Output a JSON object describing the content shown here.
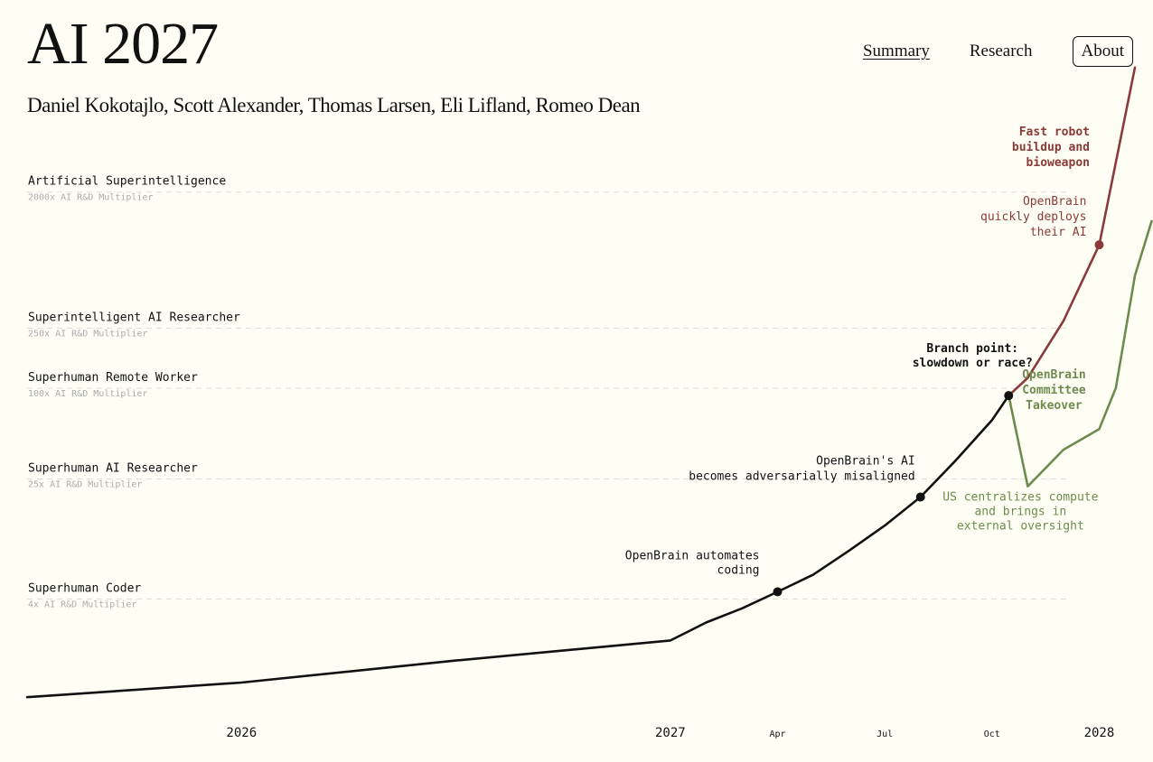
{
  "header": {
    "title": "AI 2027",
    "authors": "Daniel Kokotajlo, Scott Alexander, Thomas Larsen, Eli Lifland, Romeo Dean"
  },
  "nav": {
    "summary": "Summary",
    "research": "Research",
    "about": "About"
  },
  "colors": {
    "background": "#fffef5",
    "main_line": "#111111",
    "race": "#8b3a3a",
    "slowdown": "#6e8b4e",
    "milestone_sub": "#aaaaaa",
    "gridline": "#dddddd"
  },
  "chart_data": {
    "type": "line",
    "x_axis_type": "date",
    "xlim": [
      "2025-07",
      "2028-02"
    ],
    "ylog": true,
    "x_ticks": [
      {
        "label": "2026",
        "date": "2026-01",
        "major": true
      },
      {
        "label": "2027",
        "date": "2027-01",
        "major": true
      },
      {
        "label": "Apr",
        "date": "2027-04",
        "major": false
      },
      {
        "label": "Jul",
        "date": "2027-07",
        "major": false
      },
      {
        "label": "Oct",
        "date": "2027-10",
        "major": false
      },
      {
        "label": "2028",
        "date": "2028-01",
        "major": true
      }
    ],
    "milestones": [
      {
        "label": "Artificial Superintelligence",
        "sublabel": "2000x AI R&D Multiplier",
        "value": 2000
      },
      {
        "label": "Superintelligent AI Researcher",
        "sublabel": "250x AI R&D Multiplier",
        "value": 250
      },
      {
        "label": "Superhuman Remote Worker",
        "sublabel": "100x AI R&D Multiplier",
        "value": 100
      },
      {
        "label": "Superhuman AI Researcher",
        "sublabel": "25x AI R&D Multiplier",
        "value": 25
      },
      {
        "label": "Superhuman Coder",
        "sublabel": "4x AI R&D Multiplier",
        "value": 4
      }
    ],
    "series": [
      {
        "key": "main",
        "color": "#111111",
        "points": [
          {
            "date": "2025-07",
            "y": 0.8
          },
          {
            "date": "2026-01",
            "y": 1.0
          },
          {
            "date": "2026-07",
            "y": 1.4
          },
          {
            "date": "2027-01",
            "y": 1.9
          },
          {
            "date": "2027-02",
            "y": 2.5
          },
          {
            "date": "2027-03",
            "y": 3.1
          },
          {
            "date": "2027-04",
            "y": 4.0
          },
          {
            "date": "2027-05",
            "y": 5.2
          },
          {
            "date": "2027-06",
            "y": 7.5
          },
          {
            "date": "2027-07",
            "y": 11
          },
          {
            "date": "2027-08",
            "y": 17
          },
          {
            "date": "2027-09",
            "y": 30
          },
          {
            "date": "2027-10",
            "y": 55
          },
          {
            "date": "2027-10-15",
            "y": 80
          }
        ]
      },
      {
        "key": "race",
        "color": "#8b3a3a",
        "points": [
          {
            "date": "2027-10-15",
            "y": 80
          },
          {
            "date": "2027-11",
            "y": 105
          },
          {
            "date": "2027-12",
            "y": 250
          },
          {
            "date": "2028-01",
            "y": 800
          },
          {
            "date": "2028-02",
            "y": 12000
          }
        ]
      },
      {
        "key": "slowdown",
        "color": "#6e8b4e",
        "points": [
          {
            "date": "2027-10-15",
            "y": 80
          },
          {
            "date": "2027-11",
            "y": 20
          },
          {
            "date": "2027-12",
            "y": 35
          },
          {
            "date": "2028-01",
            "y": 48
          },
          {
            "date": "2028-01-15",
            "y": 90
          },
          {
            "date": "2028-02",
            "y": 500
          },
          {
            "date": "2028-02-15",
            "y": 1150
          }
        ]
      }
    ],
    "events": [
      {
        "key": "automates",
        "text": [
          "OpenBrain automates",
          "coding"
        ],
        "date": "2027-04",
        "y": 4.0,
        "color": "#111111",
        "bold": false,
        "align": "end"
      },
      {
        "key": "misaligned",
        "text": [
          "OpenBrain's AI",
          "becomes adversarially misaligned"
        ],
        "date": "2027-08",
        "y": 17,
        "color": "#111111",
        "bold": false,
        "align": "end"
      },
      {
        "key": "branch",
        "text": [
          "Branch point:",
          "slowdown or race?"
        ],
        "date": "2027-10-15",
        "y": 80,
        "color": "#111111",
        "bold": true,
        "align": "middle"
      },
      {
        "key": "deploys",
        "text": [
          "OpenBrain",
          "quickly deploys",
          "their AI"
        ],
        "date": "2028-01",
        "y": 800,
        "color": "#8b3a3a",
        "bold": false,
        "align": "end"
      },
      {
        "key": "robot",
        "text": [
          "Fast robot",
          "buildup and",
          "bioweapon"
        ],
        "date": "2028-02",
        "y": 12000,
        "color": "#8b3a3a",
        "bold": true,
        "align": "end"
      },
      {
        "key": "centralizes",
        "text": [
          "US centralizes compute",
          "and brings in",
          "external oversight"
        ],
        "date": "2027-11",
        "y": 20,
        "color": "#6e8b4e",
        "bold": false,
        "align": "middle"
      },
      {
        "key": "committee",
        "text": [
          "OpenBrain",
          "Committee",
          "Takeover"
        ],
        "date": "2028-01",
        "y": 48,
        "color": "#6e8b4e",
        "bold": true,
        "align": "middle"
      }
    ]
  }
}
